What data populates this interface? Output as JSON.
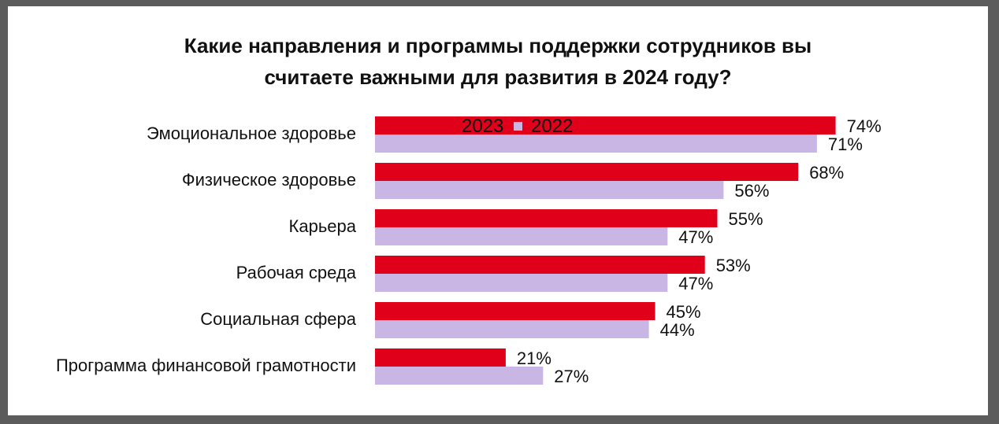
{
  "chart_data": {
    "type": "bar",
    "orientation": "horizontal",
    "title_lines": [
      "Какие направления и программы поддержки сотрудников вы",
      "считаете важными для развития в 2024 году?"
    ],
    "categories": [
      "Эмоциональное здоровье",
      "Физическое здоровье",
      "Карьера",
      "Рабочая среда",
      "Социальная сфера",
      "Программа финансовой грамотности"
    ],
    "series": [
      {
        "name": "2023",
        "color": "#e0001a",
        "values": [
          74,
          68,
          55,
          53,
          45,
          21
        ],
        "labels": [
          "74%",
          "68%",
          "55%",
          "53%",
          "45%",
          "21%"
        ]
      },
      {
        "name": "2022",
        "color": "#c9b6e4",
        "values": [
          71,
          56,
          47,
          47,
          44,
          27
        ],
        "labels": [
          "71%",
          "56%",
          "47%",
          "47%",
          "44%",
          "27%"
        ]
      }
    ],
    "unit": "%",
    "xlim": [
      0,
      100
    ],
    "grid": false,
    "legend_position": "top"
  }
}
